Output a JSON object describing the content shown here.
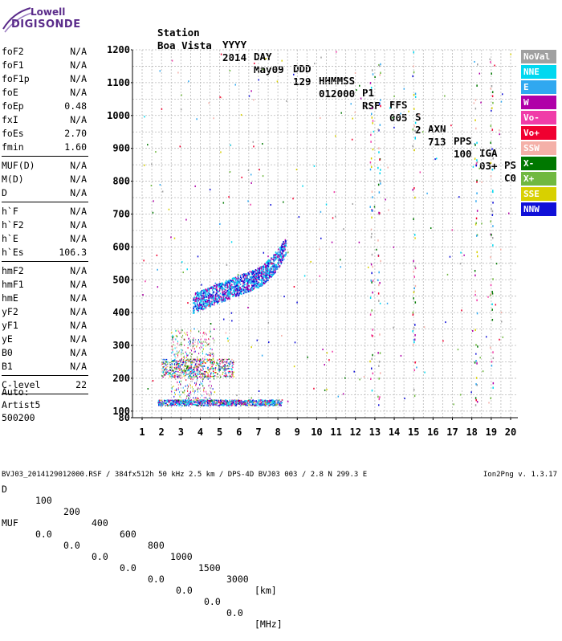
{
  "logo": {
    "top": "Lowell",
    "bottom": "DIGISONDE"
  },
  "header": {
    "labels": [
      "Station",
      "YYYY",
      "DAY",
      "DDD",
      "HHMMSS",
      "P1",
      "FFS",
      "S",
      "AXN",
      "PPS",
      "IGA",
      "PS"
    ],
    "values": [
      "Boa Vista",
      "2014",
      "May09",
      "129",
      "012000",
      "RSF",
      "005",
      "2",
      "713",
      "100",
      "03+",
      "C0"
    ]
  },
  "params": {
    "group1": [
      {
        "name": "foF2",
        "value": "N/A"
      },
      {
        "name": "foF1",
        "value": "N/A"
      },
      {
        "name": "foF1p",
        "value": "N/A"
      },
      {
        "name": "foE",
        "value": "N/A"
      },
      {
        "name": "foEp",
        "value": "0.48"
      },
      {
        "name": "fxI",
        "value": "N/A"
      },
      {
        "name": "foEs",
        "value": "2.70"
      },
      {
        "name": "fmin",
        "value": "1.60"
      }
    ],
    "group2": [
      {
        "name": "MUF(D)",
        "value": "N/A"
      },
      {
        "name": "M(D)",
        "value": "N/A"
      },
      {
        "name": "D",
        "value": "N/A"
      }
    ],
    "group3": [
      {
        "name": "h`F",
        "value": "N/A"
      },
      {
        "name": "h`F2",
        "value": "N/A"
      },
      {
        "name": "h`E",
        "value": "N/A"
      },
      {
        "name": "h`Es",
        "value": "106.3"
      }
    ],
    "group4": [
      {
        "name": "hmF2",
        "value": "N/A"
      },
      {
        "name": "hmF1",
        "value": "N/A"
      },
      {
        "name": "hmE",
        "value": "N/A"
      },
      {
        "name": "yF2",
        "value": "N/A"
      },
      {
        "name": "yF1",
        "value": "N/A"
      },
      {
        "name": "yE",
        "value": "N/A"
      },
      {
        "name": "B0",
        "value": "N/A"
      },
      {
        "name": "B1",
        "value": "N/A"
      }
    ],
    "group5": [
      {
        "name": "C-level",
        "value": "22"
      }
    ]
  },
  "auto": {
    "line1": "Auto:",
    "line2": "Artist5",
    "line3": "500200"
  },
  "legend": [
    {
      "label": "NoVal",
      "color": "#a0a0a0"
    },
    {
      "label": "NNE",
      "color": "#00d8f0"
    },
    {
      "label": "E",
      "color": "#30a8f0"
    },
    {
      "label": "W",
      "color": "#b000a8"
    },
    {
      "label": "Vo-",
      "color": "#f03ca8"
    },
    {
      "label": "Vo+",
      "color": "#f00030"
    },
    {
      "label": "SSW",
      "color": "#f4b0a8"
    },
    {
      "label": "X-",
      "color": "#007800"
    },
    {
      "label": "X+",
      "color": "#70b840"
    },
    {
      "label": "SSE",
      "color": "#d8d000"
    },
    {
      "label": "NNW",
      "color": "#1010d8"
    }
  ],
  "dtable": {
    "d_label": "D",
    "d_values": [
      "100",
      "200",
      "400",
      "600",
      "800",
      "1000",
      "1500",
      "3000",
      "[km]"
    ],
    "muf_label": "MUF",
    "muf_values": [
      "0.0",
      "0.0",
      "0.0",
      "0.0",
      "0.0",
      "0.0",
      "0.0",
      "0.0",
      "[MHz]"
    ]
  },
  "footer": "BVJ03_2014129012000.RSF / 384fx512h 50 kHz 2.5 km / DPS-4D BVJ03 003 / 2.8 N 299.3 E",
  "version": "Ion2Png v. 1.3.17",
  "chart_data": {
    "type": "scatter",
    "title": "",
    "xlabel": "",
    "ylabel": "",
    "xlim": [
      1,
      20
    ],
    "ylim": [
      80,
      1200
    ],
    "x_ticks": [
      "1",
      "2",
      "3",
      "4",
      "5",
      "6",
      "7",
      "8",
      "9",
      "10",
      "11",
      "12",
      "13",
      "14",
      "15",
      "16",
      "17",
      "18",
      "19",
      "20"
    ],
    "y_ticks": [
      "80",
      "100",
      "200",
      "300",
      "400",
      "500",
      "600",
      "700",
      "800",
      "900",
      "1000",
      "1100",
      "1200"
    ],
    "y_tick_values": [
      80,
      100,
      200,
      300,
      400,
      500,
      600,
      700,
      800,
      900,
      1000,
      1100,
      1200
    ],
    "grid": true,
    "legend_position": "right",
    "trace_regions": [
      {
        "name": "Es trace",
        "x_start": 1.8,
        "x_end": 8.3,
        "h_start": 115,
        "h_end": 135
      },
      {
        "name": "Es second hop",
        "x_start": 2.0,
        "x_end": 5.8,
        "h_start": 205,
        "h_end": 255
      },
      {
        "name": "F trace",
        "x_start": 3.6,
        "x_end": 8.4,
        "h_start": 420,
        "h_end": 580
      }
    ]
  }
}
